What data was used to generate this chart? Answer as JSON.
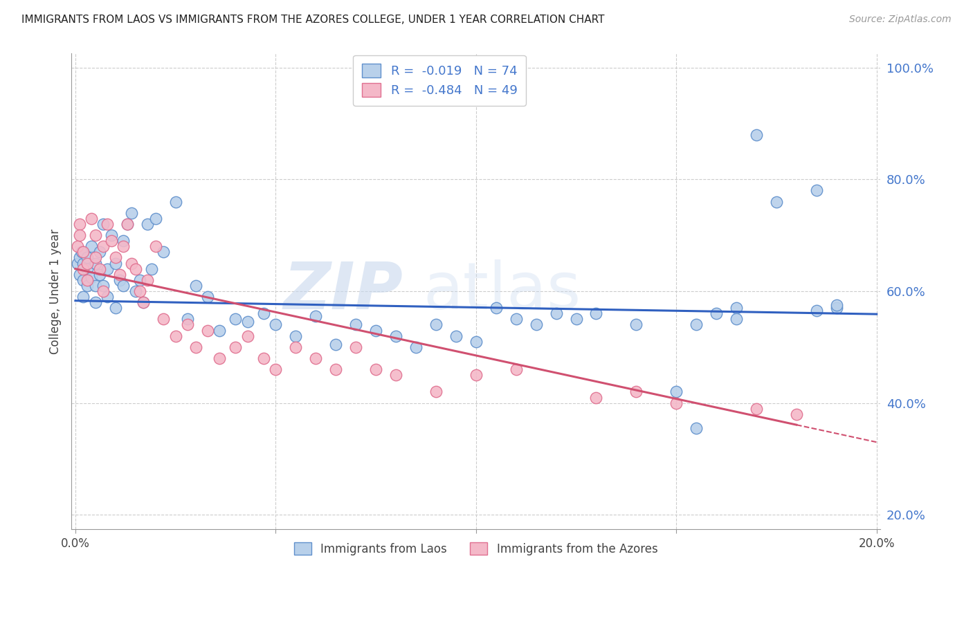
{
  "title": "IMMIGRANTS FROM LAOS VS IMMIGRANTS FROM THE AZORES COLLEGE, UNDER 1 YEAR CORRELATION CHART",
  "source": "Source: ZipAtlas.com",
  "ylabel": "College, Under 1 year",
  "legend_label_laos": "Immigrants from Laos",
  "legend_label_azores": "Immigrants from the Azores",
  "r_laos": -0.019,
  "n_laos": 74,
  "r_azores": -0.484,
  "n_azores": 49,
  "color_laos_fill": "#b8d0ea",
  "color_laos_edge": "#6090cc",
  "color_azores_fill": "#f4b8c8",
  "color_azores_edge": "#e07090",
  "color_laos_line": "#3060c0",
  "color_azores_line": "#d05070",
  "color_legend_text": "#4477cc",
  "xlim": [
    -0.001,
    0.201
  ],
  "ylim": [
    0.175,
    1.025
  ],
  "xticks": [
    0.0,
    0.05,
    0.1,
    0.15,
    0.2
  ],
  "xticklabels": [
    "0.0%",
    "",
    "",
    "",
    "20.0%"
  ],
  "yticks": [
    0.2,
    0.4,
    0.6,
    0.8,
    1.0
  ],
  "yticklabels": [
    "20.0%",
    "40.0%",
    "60.0%",
    "80.0%",
    "100.0%"
  ],
  "laos_line_intercept": 0.583,
  "laos_line_slope": -0.12,
  "azores_line_intercept": 0.64,
  "azores_line_slope": -1.55,
  "laos_x": [
    0.0005,
    0.001,
    0.001,
    0.0015,
    0.002,
    0.002,
    0.002,
    0.003,
    0.003,
    0.003,
    0.004,
    0.004,
    0.005,
    0.005,
    0.005,
    0.006,
    0.006,
    0.007,
    0.007,
    0.008,
    0.008,
    0.009,
    0.01,
    0.01,
    0.011,
    0.012,
    0.012,
    0.013,
    0.014,
    0.015,
    0.016,
    0.017,
    0.018,
    0.019,
    0.02,
    0.022,
    0.025,
    0.028,
    0.03,
    0.033,
    0.036,
    0.04,
    0.043,
    0.047,
    0.05,
    0.055,
    0.06,
    0.065,
    0.07,
    0.075,
    0.08,
    0.085,
    0.09,
    0.095,
    0.1,
    0.105,
    0.11,
    0.115,
    0.12,
    0.125,
    0.13,
    0.14,
    0.15,
    0.16,
    0.165,
    0.17,
    0.175,
    0.155,
    0.185,
    0.19,
    0.155,
    0.165,
    0.185,
    0.19
  ],
  "laos_y": [
    0.65,
    0.66,
    0.63,
    0.67,
    0.65,
    0.62,
    0.59,
    0.66,
    0.64,
    0.61,
    0.68,
    0.625,
    0.65,
    0.61,
    0.58,
    0.67,
    0.63,
    0.72,
    0.61,
    0.59,
    0.64,
    0.7,
    0.65,
    0.57,
    0.62,
    0.61,
    0.69,
    0.72,
    0.74,
    0.6,
    0.62,
    0.58,
    0.72,
    0.64,
    0.73,
    0.67,
    0.76,
    0.55,
    0.61,
    0.59,
    0.53,
    0.55,
    0.545,
    0.56,
    0.54,
    0.52,
    0.555,
    0.505,
    0.54,
    0.53,
    0.52,
    0.5,
    0.54,
    0.52,
    0.51,
    0.57,
    0.55,
    0.54,
    0.56,
    0.55,
    0.56,
    0.54,
    0.42,
    0.56,
    0.57,
    0.88,
    0.76,
    0.355,
    0.78,
    0.57,
    0.54,
    0.55,
    0.565,
    0.575
  ],
  "azores_x": [
    0.0005,
    0.001,
    0.001,
    0.002,
    0.002,
    0.003,
    0.003,
    0.004,
    0.005,
    0.005,
    0.006,
    0.007,
    0.007,
    0.008,
    0.009,
    0.01,
    0.011,
    0.012,
    0.013,
    0.014,
    0.015,
    0.016,
    0.017,
    0.018,
    0.02,
    0.022,
    0.025,
    0.028,
    0.03,
    0.033,
    0.036,
    0.04,
    0.043,
    0.047,
    0.05,
    0.055,
    0.06,
    0.065,
    0.07,
    0.075,
    0.08,
    0.09,
    0.1,
    0.11,
    0.13,
    0.14,
    0.15,
    0.17,
    0.18
  ],
  "azores_y": [
    0.68,
    0.72,
    0.7,
    0.67,
    0.64,
    0.65,
    0.62,
    0.73,
    0.7,
    0.66,
    0.64,
    0.6,
    0.68,
    0.72,
    0.69,
    0.66,
    0.63,
    0.68,
    0.72,
    0.65,
    0.64,
    0.6,
    0.58,
    0.62,
    0.68,
    0.55,
    0.52,
    0.54,
    0.5,
    0.53,
    0.48,
    0.5,
    0.52,
    0.48,
    0.46,
    0.5,
    0.48,
    0.46,
    0.5,
    0.46,
    0.45,
    0.42,
    0.45,
    0.46,
    0.41,
    0.42,
    0.4,
    0.39,
    0.38
  ]
}
